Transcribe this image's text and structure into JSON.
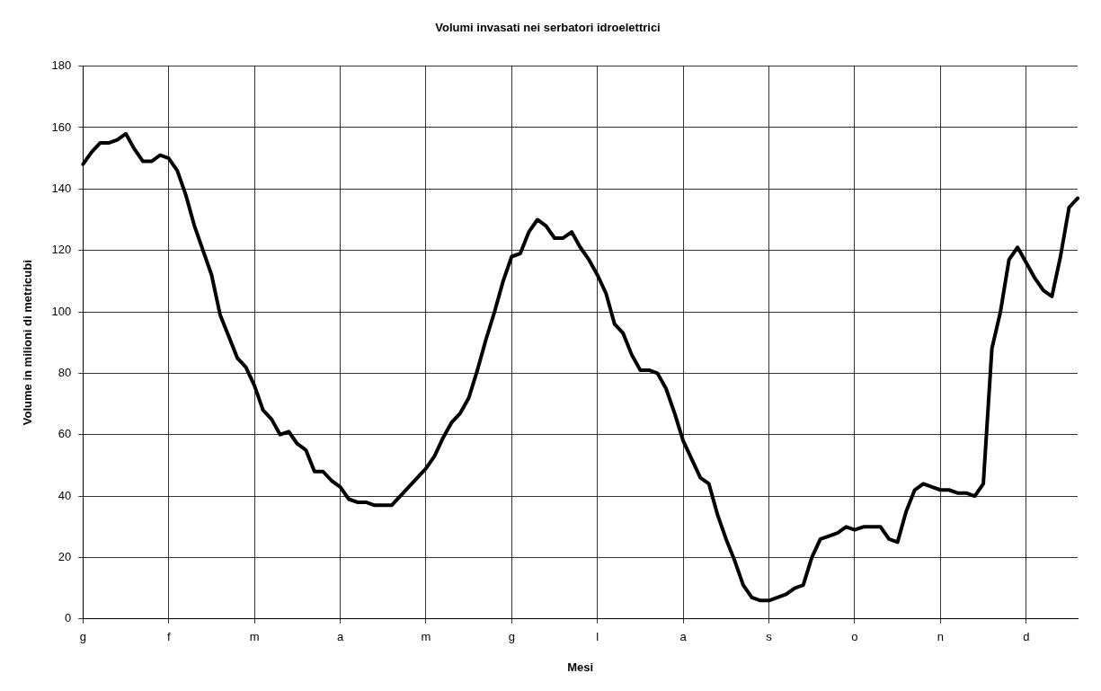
{
  "chart_data": {
    "type": "line",
    "title": "Volumi invasati nei serbatori idroelettrici",
    "xlabel": "Mesi",
    "ylabel": "Volume in milioni di metricubi",
    "categories": [
      "g",
      null,
      null,
      null,
      null,
      null,
      null,
      null,
      null,
      null,
      "f",
      null,
      null,
      null,
      null,
      null,
      null,
      null,
      null,
      null,
      "m",
      null,
      null,
      null,
      null,
      null,
      null,
      null,
      null,
      null,
      "a",
      null,
      null,
      null,
      null,
      null,
      null,
      null,
      null,
      null,
      "m",
      null,
      null,
      null,
      null,
      null,
      null,
      null,
      null,
      null,
      "g",
      null,
      null,
      null,
      null,
      null,
      null,
      null,
      null,
      null,
      "l",
      null,
      null,
      null,
      null,
      null,
      null,
      null,
      null,
      null,
      "a",
      null,
      null,
      null,
      null,
      null,
      null,
      null,
      null,
      null,
      "s",
      null,
      null,
      null,
      null,
      null,
      null,
      null,
      null,
      null,
      "o",
      null,
      null,
      null,
      null,
      null,
      null,
      null,
      null,
      null,
      "n",
      null,
      null,
      null,
      null,
      null,
      null,
      null,
      null,
      null,
      "d",
      null,
      null,
      null,
      null,
      null,
      null
    ],
    "series": [
      {
        "color": "#000000",
        "values": [
          148,
          152,
          155,
          155,
          156,
          158,
          153,
          149,
          149,
          151,
          150,
          146,
          138,
          128,
          120,
          112,
          99,
          92,
          85,
          82,
          76,
          68,
          65,
          60,
          61,
          57,
          55,
          48,
          48,
          45,
          43,
          39,
          38,
          38,
          37,
          37,
          37,
          40,
          43,
          46,
          49,
          53,
          59,
          64,
          67,
          72,
          81,
          91,
          100,
          110,
          118,
          119,
          126,
          130,
          128,
          124,
          124,
          126,
          121,
          117,
          112,
          106,
          96,
          93,
          86,
          81,
          81,
          80,
          75,
          67,
          58,
          52,
          46,
          44,
          34,
          26,
          19,
          11,
          7,
          6,
          6,
          7,
          8,
          10,
          11,
          20,
          26,
          27,
          28,
          30,
          29,
          30,
          30,
          30,
          26,
          25,
          35,
          42,
          44,
          43,
          42,
          42,
          41,
          41,
          40,
          44,
          88,
          100,
          117,
          121,
          116,
          111,
          107,
          105,
          118,
          134,
          137
        ]
      }
    ],
    "ylim": [
      0,
      180
    ],
    "yticks": [
      0,
      20,
      40,
      60,
      80,
      100,
      120,
      140,
      160,
      180
    ],
    "grid": true,
    "marker": "none",
    "line_style": "solid"
  }
}
